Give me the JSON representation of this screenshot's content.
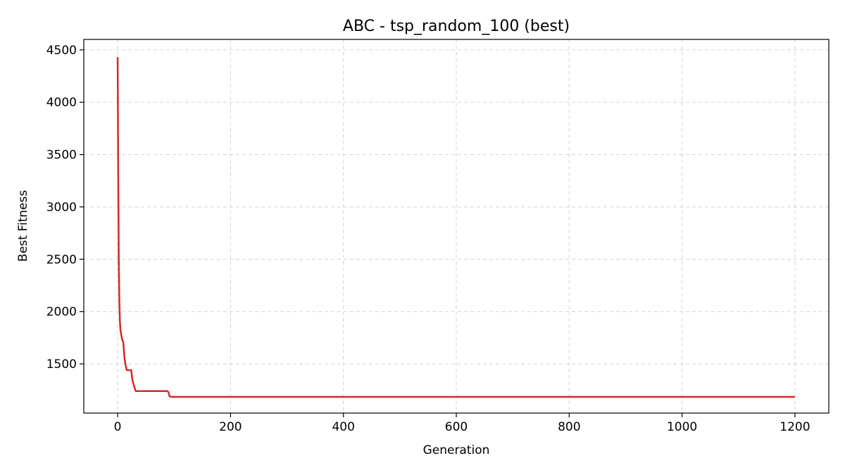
{
  "chart_data": {
    "type": "line",
    "title": "ABC - tsp_random_100 (best)",
    "xlabel": "Generation",
    "ylabel": "Best Fitness",
    "xlim": [
      -60,
      1260
    ],
    "ylim": [
      1030,
      4600
    ],
    "xticks": [
      0,
      200,
      400,
      600,
      800,
      1000,
      1200
    ],
    "yticks": [
      1500,
      2000,
      2500,
      3000,
      3500,
      4000,
      4500
    ],
    "grid": true,
    "series": [
      {
        "color": "#d62728",
        "x": [
          0,
          1,
          2,
          3,
          4,
          5,
          6,
          8,
          10,
          12,
          14,
          16,
          18,
          20,
          22,
          24,
          26,
          28,
          30,
          32,
          40,
          50,
          60,
          70,
          80,
          88,
          90,
          92,
          95,
          100,
          200,
          400,
          600,
          800,
          1000,
          1200
        ],
        "y": [
          4430,
          3300,
          2500,
          2100,
          1900,
          1820,
          1790,
          1730,
          1710,
          1560,
          1490,
          1440,
          1440,
          1440,
          1440,
          1440,
          1350,
          1310,
          1270,
          1240,
          1240,
          1240,
          1240,
          1240,
          1240,
          1240,
          1230,
          1190,
          1185,
          1185,
          1185,
          1185,
          1185,
          1185,
          1185,
          1185
        ]
      }
    ]
  }
}
